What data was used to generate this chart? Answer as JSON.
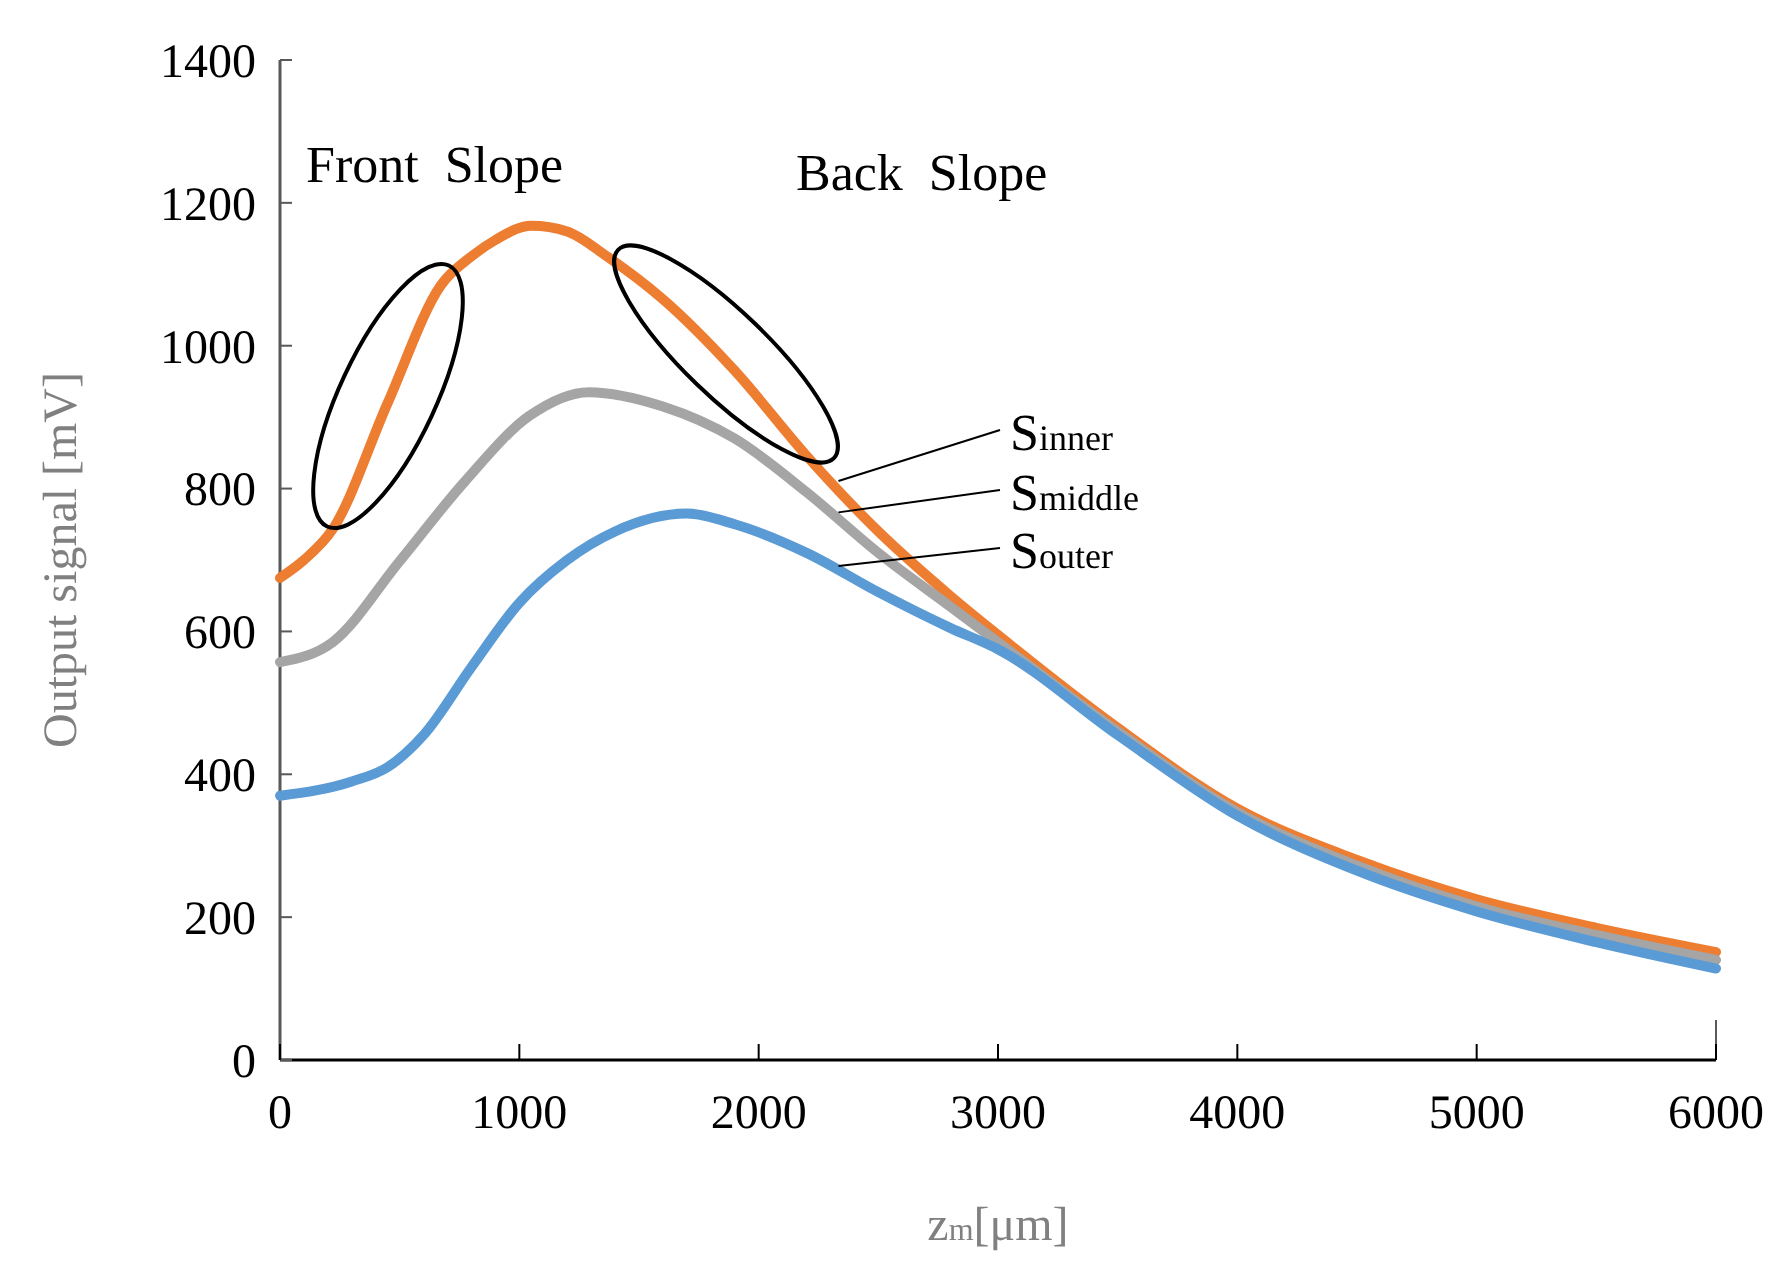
{
  "chart_data": {
    "type": "line",
    "xlabel": "z$_{m}$[μm]",
    "ylabel": "Output signal [mV]",
    "annotations": [
      "Front  Slope",
      "Back  Slope"
    ],
    "xlim": [
      0,
      6000
    ],
    "ylim": [
      0,
      1400
    ],
    "xticks": [
      0,
      1000,
      2000,
      3000,
      4000,
      5000,
      6000
    ],
    "yticks": [
      0,
      200,
      400,
      600,
      800,
      1000,
      1200,
      1400
    ],
    "grid": false,
    "marker": "none",
    "line_style": "solid",
    "series": [
      {
        "name": "S$_{inner}$",
        "color": "#ed7d31",
        "x": [
          0,
          100,
          220,
          450,
          673,
          800,
          900,
          1050,
          1200,
          1366,
          1600,
          1900,
          2200,
          2500,
          2800,
          3000,
          3500,
          4000,
          4500,
          5000,
          5500,
          6000
        ],
        "values": [
          675,
          700,
          743,
          920,
          1085,
          1125,
          1148,
          1168,
          1160,
          1125,
          1065,
          965,
          846,
          740,
          650,
          595,
          465,
          352,
          280,
          225,
          185,
          151
        ]
      },
      {
        "name": "S$_{middle}$",
        "color": "#a5a5a5",
        "x": [
          0,
          220,
          497,
          770,
          1043,
          1290,
          1600,
          1900,
          2200,
          2500,
          2800,
          3000,
          3500,
          4000,
          4500,
          5000,
          5500,
          6000
        ],
        "values": [
          557,
          585,
          697,
          809,
          902,
          935,
          915,
          870,
          795,
          710,
          635,
          585,
          460,
          347,
          272,
          215,
          175,
          140
        ]
      },
      {
        "name": "S$_{outer}$",
        "color": "#5b9bd5",
        "x": [
          0,
          300,
          450,
          600,
          800,
          1000,
          1200,
          1400,
          1700,
          1900,
          2200,
          2500,
          2800,
          3000,
          3500,
          4000,
          4500,
          5000,
          5500,
          6000
        ],
        "values": [
          370,
          390,
          410,
          455,
          550,
          640,
          700,
          740,
          765,
          750,
          710,
          655,
          605,
          575,
          455,
          342,
          265,
          208,
          165,
          128
        ]
      }
    ]
  }
}
